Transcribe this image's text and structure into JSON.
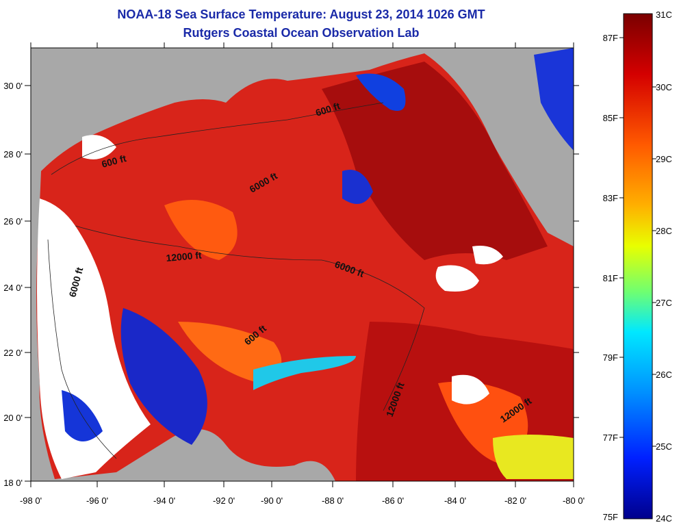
{
  "header": {
    "title": "NOAA-18 Sea Surface Temperature:  August 23, 2014 1026 GMT",
    "subtitle": "Rutgers Coastal Ocean Observation Lab"
  },
  "map": {
    "lon_ticks": [
      "-98 0'",
      "-96 0'",
      "-94 0'",
      "-92 0'",
      "-90 0'",
      "-88 0'",
      "-86 0'",
      "-84 0'",
      "-82 0'",
      "-80 0'"
    ],
    "lat_ticks": [
      "30 0'",
      "28 0'",
      "26 0'",
      "24 0'",
      "22 0'",
      "20 0'",
      "18 0'"
    ],
    "depth_labels": [
      "600 ft",
      "600 ft",
      "6000 ft",
      "12000 ft",
      "6000 ft",
      "6000 ft",
      "600 ft",
      "12000 ft",
      "12000 ft"
    ],
    "colors": {
      "land": "#a8a8a8",
      "cloud": "#ffffff",
      "warm": "#c81414",
      "hot": "#8c0a0a"
    }
  },
  "colorbar": {
    "celsius": [
      "31C",
      "30C",
      "29C",
      "28C",
      "27C",
      "26C",
      "25C",
      "24C"
    ],
    "fahrenheit": [
      "87F",
      "85F",
      "83F",
      "81F",
      "79F",
      "77F",
      "75F"
    ],
    "gradient": [
      "#7a0000",
      "#d40000",
      "#ff5a00",
      "#ffb000",
      "#e8ff00",
      "#70ff70",
      "#00e8ff",
      "#0090ff",
      "#0020ff",
      "#00008c"
    ]
  }
}
